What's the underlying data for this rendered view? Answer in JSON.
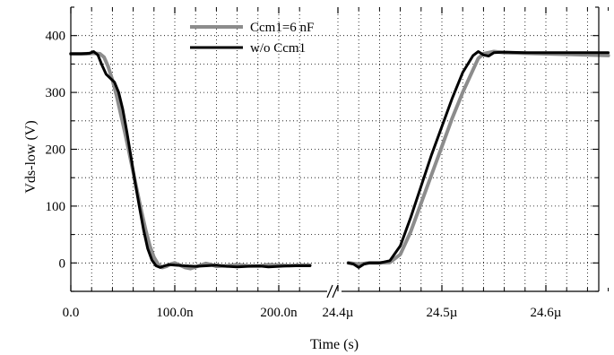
{
  "chart_data": {
    "type": "line",
    "xlabel": "Time (s)",
    "ylabel": "Vds-low (V)",
    "ylim": [
      -50,
      450
    ],
    "grid": true,
    "legend_position": "top-center",
    "x_axis_break": "between 230.0n and 24.4µ",
    "x_tick_labels": [
      "0.0",
      "100.0n",
      "200.0n",
      "24.4µ",
      "24.5µ",
      "24.6µ"
    ],
    "y_tick_labels": [
      "0",
      "100",
      "200",
      "300",
      "400"
    ],
    "y_ticks": [
      0,
      100,
      200,
      300,
      400
    ],
    "series": [
      {
        "name": "Ccm1=6 nF",
        "color": "#8c8c8c",
        "segments": [
          {
            "x_unit": "ns",
            "x_offset": 0,
            "points": [
              [
                0,
                368
              ],
              [
                15,
                368
              ],
              [
                22,
                369
              ],
              [
                28,
                368
              ],
              [
                32,
                362
              ],
              [
                36,
                345
              ],
              [
                40,
                322
              ],
              [
                44,
                295
              ],
              [
                48,
                262
              ],
              [
                52,
                230
              ],
              [
                56,
                195
              ],
              [
                60,
                160
              ],
              [
                64,
                125
              ],
              [
                68,
                90
              ],
              [
                72,
                58
              ],
              [
                76,
                30
              ],
              [
                80,
                10
              ],
              [
                84,
                -2
              ],
              [
                88,
                -8
              ],
              [
                92,
                -6
              ],
              [
                96,
                -2
              ],
              [
                100,
                0
              ],
              [
                105,
                -4
              ],
              [
                110,
                -8
              ],
              [
                115,
                -10
              ],
              [
                120,
                -7
              ],
              [
                125,
                -4
              ],
              [
                130,
                -1
              ],
              [
                135,
                -3
              ],
              [
                140,
                -6
              ],
              [
                150,
                -5
              ],
              [
                160,
                -3
              ],
              [
                170,
                -5
              ],
              [
                180,
                -6
              ],
              [
                190,
                -3
              ],
              [
                200,
                -4
              ],
              [
                210,
                -5
              ],
              [
                220,
                -4
              ],
              [
                230,
                -4
              ]
            ]
          },
          {
            "x_unit": "µs",
            "x_offset": 0,
            "points": [
              [
                24.41,
                0
              ],
              [
                24.42,
                -2
              ],
              [
                24.43,
                0
              ],
              [
                24.44,
                0
              ],
              [
                24.45,
                1
              ],
              [
                24.46,
                15
              ],
              [
                24.47,
                55
              ],
              [
                24.48,
                105
              ],
              [
                24.49,
                155
              ],
              [
                24.5,
                205
              ],
              [
                24.51,
                255
              ],
              [
                24.52,
                300
              ],
              [
                24.53,
                340
              ],
              [
                24.535,
                360
              ],
              [
                24.54,
                368
              ],
              [
                24.55,
                372
              ],
              [
                24.56,
                370
              ],
              [
                24.58,
                369
              ],
              [
                24.6,
                368
              ],
              [
                24.62,
                367
              ],
              [
                24.64,
                366
              ],
              [
                24.66,
                365
              ]
            ]
          }
        ]
      },
      {
        "name": "w/o Ccm1",
        "color": "#000000",
        "segments": [
          {
            "x_unit": "ns",
            "x_offset": 0,
            "points": [
              [
                0,
                368
              ],
              [
                10,
                368
              ],
              [
                18,
                369
              ],
              [
                22,
                372
              ],
              [
                26,
                366
              ],
              [
                30,
                348
              ],
              [
                34,
                332
              ],
              [
                38,
                325
              ],
              [
                42,
                318
              ],
              [
                46,
                300
              ],
              [
                50,
                270
              ],
              [
                54,
                230
              ],
              [
                58,
                185
              ],
              [
                62,
                140
              ],
              [
                66,
                98
              ],
              [
                70,
                58
              ],
              [
                74,
                25
              ],
              [
                78,
                5
              ],
              [
                82,
                -5
              ],
              [
                86,
                -8
              ],
              [
                90,
                -5
              ],
              [
                95,
                -3
              ],
              [
                100,
                -4
              ],
              [
                110,
                -5
              ],
              [
                120,
                -6
              ],
              [
                130,
                -5
              ],
              [
                140,
                -4
              ],
              [
                150,
                -6
              ],
              [
                160,
                -7
              ],
              [
                170,
                -6
              ],
              [
                180,
                -5
              ],
              [
                190,
                -7
              ],
              [
                200,
                -6
              ],
              [
                210,
                -5
              ],
              [
                220,
                -5
              ],
              [
                230,
                -5
              ]
            ]
          },
          {
            "x_unit": "µs",
            "x_offset": 0,
            "points": [
              [
                24.41,
                0
              ],
              [
                24.415,
                -2
              ],
              [
                24.42,
                -8
              ],
              [
                24.425,
                -2
              ],
              [
                24.43,
                0
              ],
              [
                24.44,
                0
              ],
              [
                24.45,
                4
              ],
              [
                24.46,
                30
              ],
              [
                24.47,
                80
              ],
              [
                24.48,
                135
              ],
              [
                24.49,
                190
              ],
              [
                24.5,
                240
              ],
              [
                24.51,
                290
              ],
              [
                24.52,
                335
              ],
              [
                24.53,
                365
              ],
              [
                24.535,
                372
              ],
              [
                24.54,
                366
              ],
              [
                24.545,
                364
              ],
              [
                24.55,
                370
              ],
              [
                24.56,
                371
              ],
              [
                24.58,
                370
              ],
              [
                24.6,
                370
              ],
              [
                24.62,
                370
              ],
              [
                24.64,
                370
              ],
              [
                24.66,
                370
              ]
            ]
          }
        ]
      }
    ]
  }
}
